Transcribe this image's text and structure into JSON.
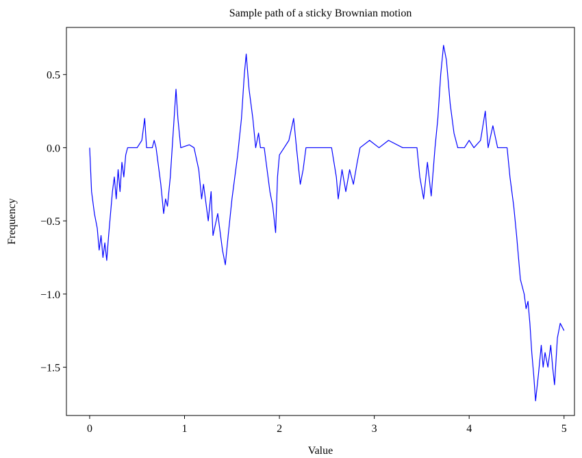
{
  "chart_data": {
    "type": "line",
    "title": "Sample path of a sticky Brownian motion",
    "xlabel": "Value",
    "ylabel": "Frequency",
    "color": "#0000ff",
    "xlim": [
      -0.245,
      5.11
    ],
    "ylim": [
      -1.83,
      0.822
    ],
    "xticks": [
      0,
      1,
      2,
      3,
      4,
      5
    ],
    "yticks": [
      {
        "value": -1.5,
        "label": "−1.5"
      },
      {
        "value": -1.0,
        "label": "−1.0"
      },
      {
        "value": -0.5,
        "label": "−0.5"
      },
      {
        "value": 0,
        "label": "0.0"
      },
      0.5
    ],
    "x": [
      0,
      0.02,
      0.05,
      0.08,
      0.1,
      0.12,
      0.14,
      0.16,
      0.18,
      0.2,
      0.22,
      0.24,
      0.26,
      0.28,
      0.3,
      0.32,
      0.34,
      0.36,
      0.38,
      0.4,
      0.5,
      0.55,
      0.58,
      0.6,
      0.66,
      0.68,
      0.7,
      0.72,
      0.75,
      0.78,
      0.8,
      0.82,
      0.85,
      0.88,
      0.91,
      0.93,
      0.96,
      1.05,
      1.1,
      1.15,
      1.18,
      1.2,
      1.25,
      1.28,
      1.3,
      1.35,
      1.4,
      1.43,
      1.46,
      1.5,
      1.53,
      1.56,
      1.6,
      1.63,
      1.65,
      1.68,
      1.72,
      1.75,
      1.78,
      1.8,
      1.84,
      1.86,
      1.9,
      1.93,
      1.96,
      1.98,
      2.0,
      2.05,
      2.1,
      2.15,
      2.18,
      2.22,
      2.25,
      2.28,
      2.35,
      2.45,
      2.55,
      2.6,
      2.62,
      2.66,
      2.7,
      2.74,
      2.78,
      2.82,
      2.85,
      2.95,
      3.05,
      3.15,
      3.3,
      3.45,
      3.48,
      3.52,
      3.56,
      3.6,
      3.64,
      3.67,
      3.7,
      3.73,
      3.76,
      3.8,
      3.84,
      3.88,
      3.95,
      4.0,
      4.05,
      4.12,
      4.17,
      4.2,
      4.25,
      4.3,
      4.4,
      4.43,
      4.47,
      4.5,
      4.54,
      4.58,
      4.6,
      4.62,
      4.64,
      4.66,
      4.68,
      4.7,
      4.73,
      4.76,
      4.78,
      4.8,
      4.83,
      4.86,
      4.88,
      4.9,
      4.93,
      4.96,
      5.0
    ],
    "values": [
      0,
      -0.3,
      -0.45,
      -0.55,
      -0.7,
      -0.6,
      -0.75,
      -0.65,
      -0.77,
      -0.6,
      -0.45,
      -0.3,
      -0.2,
      -0.35,
      -0.15,
      -0.3,
      -0.1,
      -0.2,
      -0.05,
      0,
      0,
      0.05,
      0.2,
      0,
      0,
      0.05,
      0,
      -0.1,
      -0.25,
      -0.45,
      -0.35,
      -0.4,
      -0.2,
      0.1,
      0.4,
      0.2,
      0,
      0.02,
      0,
      -0.15,
      -0.35,
      -0.25,
      -0.5,
      -0.3,
      -0.6,
      -0.45,
      -0.7,
      -0.8,
      -0.6,
      -0.35,
      -0.2,
      -0.05,
      0.2,
      0.5,
      0.64,
      0.4,
      0.2,
      0,
      0.1,
      0,
      0,
      -0.1,
      -0.3,
      -0.4,
      -0.58,
      -0.2,
      -0.05,
      0,
      0.05,
      0.2,
      0,
      -0.25,
      -0.15,
      0,
      0,
      0,
      0,
      -0.2,
      -0.35,
      -0.15,
      -0.3,
      -0.15,
      -0.25,
      -0.1,
      0,
      0.05,
      0,
      0.05,
      0,
      0,
      -0.2,
      -0.35,
      -0.1,
      -0.33,
      0,
      0.2,
      0.5,
      0.7,
      0.6,
      0.3,
      0.1,
      0,
      0,
      0.05,
      0,
      0.05,
      0.25,
      0,
      0.15,
      0,
      0,
      -0.2,
      -0.4,
      -0.6,
      -0.9,
      -1.0,
      -1.1,
      -1.05,
      -1.2,
      -1.4,
      -1.55,
      -1.73,
      -1.55,
      -1.35,
      -1.5,
      -1.4,
      -1.5,
      -1.35,
      -1.5,
      -1.62,
      -1.3,
      -1.2,
      -1.25
    ]
  }
}
